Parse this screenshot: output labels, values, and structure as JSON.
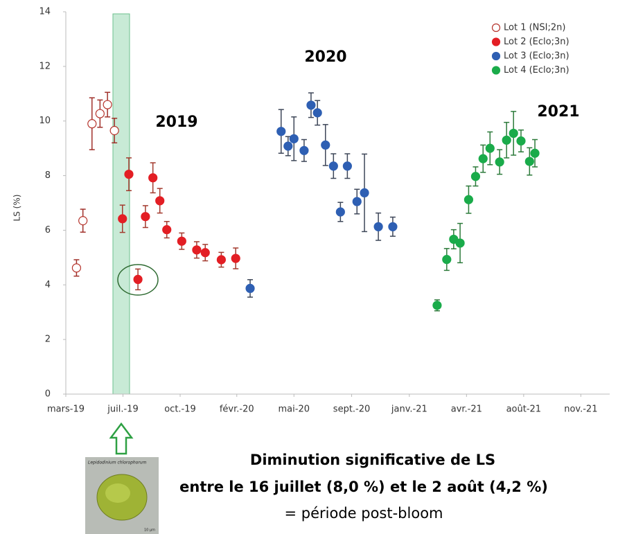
{
  "chart_data": {
    "type": "scatter",
    "ylabel": "LS (%)",
    "ylim": [
      0,
      14
    ],
    "yticks": [
      0,
      2,
      4,
      6,
      8,
      10,
      12,
      14
    ],
    "xlim": [
      "2019-03-31",
      "2022-01-12"
    ],
    "xticks": [
      {
        "value": "2019-03-31",
        "label": "mars-19"
      },
      {
        "value": "2019-07-16",
        "label": "juil.-19"
      },
      {
        "value": "2019-10-31",
        "label": "oct.-19"
      },
      {
        "value": "2020-02-14",
        "label": "févr.-20"
      },
      {
        "value": "2020-05-31",
        "label": "mai-20"
      },
      {
        "value": "2020-09-16",
        "label": "sept.-20"
      },
      {
        "value": "2021-01-02",
        "label": "janv.-21"
      },
      {
        "value": "2021-04-19",
        "label": "avr.-21"
      },
      {
        "value": "2021-08-04",
        "label": "août-21"
      },
      {
        "value": "2021-11-19",
        "label": "nov.-21"
      }
    ],
    "grid": false,
    "legend": "top-right",
    "annotations": [
      "2019",
      "2020",
      "2021"
    ],
    "series": [
      {
        "name": "Lot 1 (NSI;2n)",
        "color": "#b5332b",
        "fill": "#ffffff",
        "error_color": "#a0302a",
        "x": [
          "2019-04-20",
          "2019-05-02",
          "2019-05-19",
          "2019-06-03",
          "2019-06-17",
          "2019-06-30"
        ],
        "values": [
          4.62,
          6.35,
          9.9,
          10.27,
          10.6,
          9.65
        ],
        "errors": [
          0.3,
          0.42,
          0.95,
          0.5,
          0.45,
          0.45
        ]
      },
      {
        "name": "Lot 2 (Eclo;3n)",
        "color": "#e31e24",
        "fill": "#e31e24",
        "error_color": "#a33a2e",
        "x": [
          "2019-07-15",
          "2019-07-27",
          "2019-08-13",
          "2019-08-27",
          "2019-09-10",
          "2019-09-23",
          "2019-10-06",
          "2019-11-03",
          "2019-12-01",
          "2019-12-17",
          "2020-01-16",
          "2020-02-12"
        ],
        "values": [
          6.42,
          8.05,
          4.2,
          6.5,
          7.92,
          7.08,
          6.02,
          5.6,
          5.28,
          5.18,
          4.92,
          4.97
        ],
        "errors": [
          0.5,
          0.6,
          0.38,
          0.4,
          0.55,
          0.45,
          0.3,
          0.3,
          0.3,
          0.3,
          0.27,
          0.38
        ]
      },
      {
        "name": "Lot 3 (Eclo;3n)",
        "color": "#2e5fb3",
        "fill": "#2e5fb3",
        "error_color": "#3d4658",
        "x": [
          "2020-03-10",
          "2020-05-07",
          "2020-05-20",
          "2020-05-31",
          "2020-06-19",
          "2020-07-02",
          "2020-07-14",
          "2020-07-29",
          "2020-08-13",
          "2020-08-26",
          "2020-09-08",
          "2020-09-26",
          "2020-10-10",
          "2020-11-05",
          "2020-12-02"
        ],
        "values": [
          3.87,
          9.62,
          9.08,
          9.35,
          8.92,
          10.58,
          10.3,
          9.12,
          8.35,
          6.67,
          8.35,
          7.05,
          7.37,
          6.13,
          6.13
        ],
        "errors": [
          0.32,
          0.8,
          0.35,
          0.8,
          0.4,
          0.45,
          0.45,
          0.75,
          0.45,
          0.35,
          0.45,
          0.45,
          1.42,
          0.5,
          0.35
        ]
      },
      {
        "name": "Lot 4 (Eclo;3n)",
        "color": "#1aab4a",
        "fill": "#1aab4a",
        "error_color": "#2c7a3a",
        "x": [
          "2021-02-23",
          "2021-03-13",
          "2021-03-26",
          "2021-04-07",
          "2021-04-23",
          "2021-05-06",
          "2021-05-20",
          "2021-06-02",
          "2021-06-20",
          "2021-07-03",
          "2021-07-16",
          "2021-07-30",
          "2021-08-15",
          "2021-08-25"
        ],
        "values": [
          3.25,
          4.93,
          5.67,
          5.53,
          7.12,
          7.97,
          8.62,
          9.0,
          8.5,
          9.3,
          9.55,
          9.27,
          8.52,
          8.82
        ],
        "errors": [
          0.2,
          0.4,
          0.35,
          0.72,
          0.5,
          0.35,
          0.5,
          0.6,
          0.45,
          0.65,
          0.8,
          0.4,
          0.5,
          0.5
        ]
      }
    ]
  },
  "caption": [
    "Diminution significative de LS",
    "entre le 16 juillet (8,0 %) et le 2 août (4,2 %)",
    "= période post-bloom"
  ],
  "inset": {
    "title": "Lepidodinium chlorophorum",
    "scale": "10 µm"
  }
}
